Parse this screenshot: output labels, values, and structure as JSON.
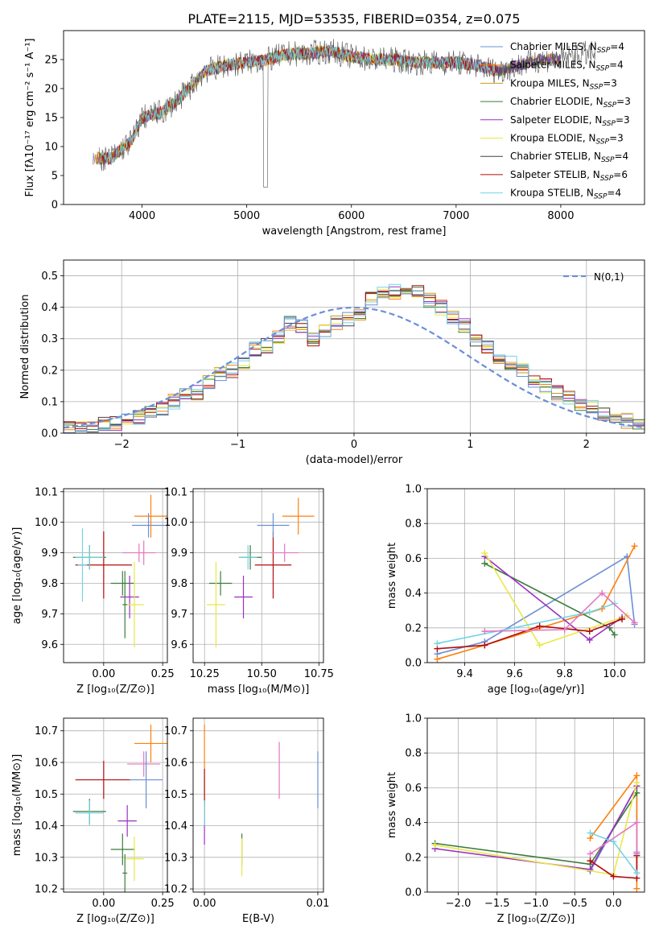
{
  "title": "PLATE=2115, MJD=53535, FIBERID=0354, z=0.075",
  "colors": [
    "#1f77b4",
    "#ff7f0e",
    "#c89b1b",
    "#3b7d3b",
    "#9b30c0",
    "#e8e84a",
    "#444444",
    "#b20d0d",
    "#74d4e4",
    "#6b8fd6",
    "#e377c2"
  ],
  "chart_data": [
    {
      "id": "spectrum",
      "type": "line",
      "xlabel": "wavelength [Angstrom, rest frame]",
      "ylabel": "Flux [fλ10⁻¹⁷ erg cm⁻² s⁻¹ A⁻¹]",
      "xlim": [
        3250,
        8800
      ],
      "ylim": [
        0,
        30
      ],
      "xticks": [
        4000,
        5000,
        6000,
        7000,
        8000
      ],
      "yticks": [
        0,
        5,
        10,
        15,
        20,
        25
      ],
      "grid": false,
      "legend_position": "top-right",
      "series": [
        {
          "name": "Chabrier MILES, N_SSP=4",
          "color": "#6b8fd6"
        },
        {
          "name": "Salpeter MILES, N_SSP=4",
          "color": "#ff7f0e"
        },
        {
          "name": "Kroupa MILES, N_SSP=3",
          "color": "#c89b1b"
        },
        {
          "name": "Chabrier ELODIE, N_SSP=3",
          "color": "#3b7d3b"
        },
        {
          "name": "Salpeter ELODIE, N_SSP=3",
          "color": "#9b30c0"
        },
        {
          "name": "Kroupa ELODIE, N_SSP=3",
          "color": "#e8e84a"
        },
        {
          "name": "Chabrier STELIB, N_SSP=4",
          "color": "#444444"
        },
        {
          "name": "Salpeter STELIB, N_SSP=6",
          "color": "#b20d0d"
        },
        {
          "name": "Kroupa STELIB, N_SSP=4",
          "color": "#74d4e4"
        }
      ],
      "data_x_approx": [
        3550,
        3700,
        3900,
        4000,
        4200,
        4400,
        4600,
        4800,
        5000,
        5200,
        5400,
        5600,
        5800,
        6000,
        6200,
        6400,
        6600,
        6800,
        7000,
        7200,
        7400,
        7600,
        7800,
        8000,
        8200
      ],
      "data_y_approx": [
        8,
        8,
        11,
        15,
        16,
        19,
        23,
        24,
        24.5,
        25,
        26,
        26,
        26.5,
        25.5,
        25,
        25,
        24.5,
        24.5,
        24.5,
        24,
        23,
        24,
        25,
        25,
        26
      ]
    },
    {
      "id": "residuals",
      "type": "histogram",
      "xlabel": "(data-model)/error",
      "ylabel": "Normed distribution",
      "xlim": [
        -2.5,
        2.5
      ],
      "ylim": [
        0,
        0.55
      ],
      "xticks": [
        -2,
        -1,
        0,
        1,
        2
      ],
      "yticks": [
        0.0,
        0.1,
        0.2,
        0.3,
        0.4,
        0.5
      ],
      "grid": true,
      "legend": "N(0,1)",
      "legend_position": "top-right",
      "bin_width": 0.1,
      "bin_start": -2.5,
      "values": [
        0.02,
        0.02,
        0.02,
        0.03,
        0.03,
        0.04,
        0.05,
        0.06,
        0.08,
        0.1,
        0.12,
        0.13,
        0.16,
        0.19,
        0.2,
        0.23,
        0.27,
        0.28,
        0.31,
        0.35,
        0.34,
        0.3,
        0.33,
        0.35,
        0.36,
        0.38,
        0.43,
        0.44,
        0.45,
        0.44,
        0.45,
        0.42,
        0.4,
        0.37,
        0.34,
        0.3,
        0.27,
        0.24,
        0.22,
        0.2,
        0.17,
        0.15,
        0.13,
        0.11,
        0.09,
        0.08,
        0.06,
        0.05,
        0.04,
        0.03
      ]
    },
    {
      "id": "age-vs-Z",
      "type": "errorbar",
      "xlabel": "Z [log₁₀(Z/Z⊙)]",
      "ylabel": "age  [log₁₀(age/yr)]",
      "xlim": [
        -0.17,
        0.27
      ],
      "ylim": [
        9.54,
        10.11
      ],
      "xticks": [
        0.0,
        0.25
      ],
      "yticks": [
        9.6,
        9.7,
        9.8,
        9.9,
        10.0,
        10.1
      ],
      "points": [
        {
          "x": 0.0,
          "y": 9.86,
          "xerr": 0.12,
          "yerr": 0.11,
          "color": "#b20d0d"
        },
        {
          "x": -0.06,
          "y": 9.885,
          "xerr": 0.07,
          "yerr": 0.04,
          "color": "#3b7d3b"
        },
        {
          "x": -0.06,
          "y": 9.885,
          "xerr": 0.06,
          "yerr": 0.04,
          "color": "#74d4e4"
        },
        {
          "x": -0.09,
          "y": 9.86,
          "xerr": 0.02,
          "yerr": 0.12,
          "color": "#74d4e4"
        },
        {
          "x": 0.08,
          "y": 9.8,
          "xerr": 0.05,
          "yerr": 0.04,
          "color": "#3b7d3b"
        },
        {
          "x": 0.11,
          "y": 9.755,
          "xerr": 0.04,
          "yerr": 0.07,
          "color": "#9b30c0"
        },
        {
          "x": 0.13,
          "y": 9.73,
          "xerr": 0.04,
          "yerr": 0.14,
          "color": "#e8e84a"
        },
        {
          "x": 0.09,
          "y": 9.73,
          "xerr": 0.01,
          "yerr": 0.11,
          "color": "#3b7d3b"
        },
        {
          "x": 0.15,
          "y": 9.9,
          "xerr": 0.07,
          "yerr": 0.03,
          "color": "#e377c2"
        },
        {
          "x": 0.19,
          "y": 9.99,
          "xerr": 0.07,
          "yerr": 0.04,
          "color": "#6b8fd6"
        },
        {
          "x": 0.2,
          "y": 10.02,
          "xerr": 0.07,
          "yerr": 0.07,
          "color": "#ff7f0e"
        },
        {
          "x": 0.17,
          "y": 9.9,
          "xerr": 0.01,
          "yerr": 0.04,
          "color": "#e377c2"
        }
      ]
    },
    {
      "id": "age-vs-mass",
      "type": "errorbar",
      "xlabel": "mass [log₁₀(M/M⊙)]",
      "ylabel": "",
      "xlim": [
        10.2,
        10.77
      ],
      "ylim": [
        9.54,
        10.11
      ],
      "xticks": [
        10.25,
        10.5,
        10.75
      ],
      "yticks": [
        9.6,
        9.7,
        9.8,
        9.9,
        10.0,
        10.1
      ],
      "points": [
        {
          "x": 10.55,
          "y": 9.86,
          "xerr": 0.08,
          "yerr": 0.11,
          "color": "#b20d0d"
        },
        {
          "x": 10.45,
          "y": 9.885,
          "xerr": 0.05,
          "yerr": 0.04,
          "color": "#3b7d3b"
        },
        {
          "x": 10.44,
          "y": 9.885,
          "xerr": 0.04,
          "yerr": 0.04,
          "color": "#74d4e4"
        },
        {
          "x": 10.32,
          "y": 9.8,
          "xerr": 0.05,
          "yerr": 0.04,
          "color": "#3b7d3b"
        },
        {
          "x": 10.42,
          "y": 9.755,
          "xerr": 0.04,
          "yerr": 0.07,
          "color": "#9b30c0"
        },
        {
          "x": 10.3,
          "y": 9.73,
          "xerr": 0.04,
          "yerr": 0.14,
          "color": "#e8e84a"
        },
        {
          "x": 10.6,
          "y": 9.9,
          "xerr": 0.06,
          "yerr": 0.03,
          "color": "#e377c2"
        },
        {
          "x": 10.55,
          "y": 9.99,
          "xerr": 0.07,
          "yerr": 0.04,
          "color": "#6b8fd6"
        },
        {
          "x": 10.66,
          "y": 10.02,
          "xerr": 0.07,
          "yerr": 0.06,
          "color": "#ff7f0e"
        }
      ]
    },
    {
      "id": "weight-vs-age",
      "type": "line",
      "xlabel": "age  [log₁₀(age/yr)]",
      "ylabel": "mass weight",
      "xlim": [
        9.25,
        10.12
      ],
      "ylim": [
        0,
        1
      ],
      "xticks": [
        9.4,
        9.6,
        9.8,
        10.0
      ],
      "yticks": [
        0.0,
        0.2,
        0.4,
        0.6,
        0.8,
        1.0
      ],
      "grid": true,
      "series": [
        {
          "color": "#6b8fd6",
          "x": [
            9.29,
            9.48,
            10.05,
            10.08
          ],
          "y": [
            0.05,
            0.12,
            0.61,
            0.22
          ]
        },
        {
          "color": "#ff7f0e",
          "x": [
            9.29,
            9.48,
            9.95,
            10.08
          ],
          "y": [
            0.02,
            0.1,
            0.31,
            0.67
          ]
        },
        {
          "color": "#3b7d3b",
          "x": [
            9.48,
            9.98,
            10.0
          ],
          "y": [
            0.57,
            0.2,
            0.16
          ]
        },
        {
          "color": "#9b30c0",
          "x": [
            9.48,
            9.9,
            10.03
          ],
          "y": [
            0.61,
            0.13,
            0.26
          ]
        },
        {
          "color": "#e8e84a",
          "x": [
            9.48,
            9.7,
            10.05
          ],
          "y": [
            0.63,
            0.1,
            0.27
          ]
        },
        {
          "color": "#b20d0d",
          "x": [
            9.29,
            9.48,
            9.7,
            9.9,
            10.03
          ],
          "y": [
            0.08,
            0.1,
            0.21,
            0.18,
            0.25
          ]
        },
        {
          "color": "#74d4e4",
          "x": [
            9.29,
            9.9,
            10.0
          ],
          "y": [
            0.11,
            0.29,
            0.34
          ]
        },
        {
          "color": "#e377c2",
          "x": [
            9.48,
            9.8,
            9.95,
            10.08
          ],
          "y": [
            0.18,
            0.19,
            0.4,
            0.23
          ]
        }
      ]
    },
    {
      "id": "mass-vs-Z",
      "type": "errorbar",
      "xlabel": "Z [log₁₀(Z/Z⊙)]",
      "ylabel": "mass [log₁₀(M/M⊙)]",
      "xlim": [
        -0.17,
        0.27
      ],
      "ylim": [
        10.19,
        10.74
      ],
      "xticks": [
        0.0,
        0.25
      ],
      "yticks": [
        10.2,
        10.3,
        10.4,
        10.5,
        10.6,
        10.7
      ],
      "points": [
        {
          "x": 0.0,
          "y": 10.545,
          "xerr": 0.12,
          "yerr": 0.06,
          "color": "#b20d0d"
        },
        {
          "x": -0.06,
          "y": 10.445,
          "xerr": 0.07,
          "yerr": 0.04,
          "color": "#3b7d3b"
        },
        {
          "x": -0.06,
          "y": 10.44,
          "xerr": 0.06,
          "yerr": 0.04,
          "color": "#74d4e4"
        },
        {
          "x": 0.08,
          "y": 10.325,
          "xerr": 0.05,
          "yerr": 0.05,
          "color": "#3b7d3b"
        },
        {
          "x": 0.1,
          "y": 10.415,
          "xerr": 0.04,
          "yerr": 0.05,
          "color": "#9b30c0"
        },
        {
          "x": 0.13,
          "y": 10.295,
          "xerr": 0.04,
          "yerr": 0.07,
          "color": "#e8e84a"
        },
        {
          "x": 0.09,
          "y": 10.25,
          "xerr": 0.01,
          "yerr": 0.06,
          "color": "#3b7d3b"
        },
        {
          "x": 0.17,
          "y": 10.595,
          "xerr": 0.07,
          "yerr": 0.04,
          "color": "#e377c2"
        },
        {
          "x": 0.18,
          "y": 10.545,
          "xerr": 0.07,
          "yerr": 0.09,
          "color": "#6b8fd6"
        },
        {
          "x": 0.2,
          "y": 10.66,
          "xerr": 0.07,
          "yerr": 0.06,
          "color": "#ff7f0e"
        }
      ]
    },
    {
      "id": "mass-vs-ebv",
      "type": "errorbar",
      "xlabel": "E(B-V)",
      "ylabel": "",
      "xlim": [
        -0.001,
        0.0105
      ],
      "ylim": [
        10.19,
        10.74
      ],
      "xticks": [
        0.0,
        0.01
      ],
      "xtick_labels": [
        "0.00",
        "0.01"
      ],
      "yticks": [
        10.2,
        10.3,
        10.4,
        10.5,
        10.6,
        10.7
      ],
      "points": [
        {
          "x": 0.0,
          "y": 10.56,
          "xerr": 0,
          "yerr": 0.16,
          "color": "#ff7f0e"
        },
        {
          "x": 0.0,
          "y": 10.52,
          "xerr": 0,
          "yerr": 0.06,
          "color": "#b20d0d"
        },
        {
          "x": 0.0,
          "y": 10.41,
          "xerr": 0,
          "yerr": 0.07,
          "color": "#9b30c0"
        },
        {
          "x": 0.0,
          "y": 10.44,
          "xerr": 0,
          "yerr": 0.04,
          "color": "#74d4e4"
        },
        {
          "x": 0.0033,
          "y": 10.325,
          "xerr": 0,
          "yerr": 0.05,
          "color": "#3b7d3b"
        },
        {
          "x": 0.0033,
          "y": 10.3,
          "xerr": 0,
          "yerr": 0.06,
          "color": "#e8e84a"
        },
        {
          "x": 0.0066,
          "y": 10.575,
          "xerr": 0,
          "yerr": 0.09,
          "color": "#e377c2"
        },
        {
          "x": 0.01,
          "y": 10.545,
          "xerr": 0,
          "yerr": 0.09,
          "color": "#6b8fd6"
        }
      ]
    },
    {
      "id": "weight-vs-Z",
      "type": "line",
      "xlabel": "Z [log₁₀(Z/Z⊙)]",
      "ylabel": "mass weight",
      "xlim": [
        -2.4,
        0.4
      ],
      "ylim": [
        0,
        1
      ],
      "xticks": [
        -2.0,
        -1.5,
        -1.0,
        -0.5,
        0.0
      ],
      "yticks": [
        0.0,
        0.2,
        0.4,
        0.6,
        0.8,
        1.0
      ],
      "grid": true,
      "series": [
        {
          "color": "#6b8fd6",
          "x": [
            -0.3,
            0.3,
            0.3
          ],
          "y": [
            0.12,
            0.61,
            0.22
          ]
        },
        {
          "color": "#ff7f0e",
          "x": [
            -0.3,
            0.3,
            0.3
          ],
          "y": [
            0.31,
            0.67,
            0.02
          ]
        },
        {
          "color": "#3b7d3b",
          "x": [
            -2.3,
            -0.3,
            0.3
          ],
          "y": [
            0.28,
            0.16,
            0.57
          ]
        },
        {
          "color": "#9b30c0",
          "x": [
            -2.3,
            -0.3,
            0.3
          ],
          "y": [
            0.25,
            0.13,
            0.61
          ]
        },
        {
          "color": "#e8e84a",
          "x": [
            -2.3,
            0.0,
            0.3
          ],
          "y": [
            0.27,
            0.1,
            0.63
          ]
        },
        {
          "color": "#b20d0d",
          "x": [
            -0.3,
            0.0,
            0.3,
            0.3
          ],
          "y": [
            0.18,
            0.09,
            0.08,
            0.21
          ]
        },
        {
          "color": "#74d4e4",
          "x": [
            -0.3,
            0.0,
            0.3
          ],
          "y": [
            0.34,
            0.29,
            0.11
          ]
        },
        {
          "color": "#e377c2",
          "x": [
            -0.3,
            0.3,
            0.3
          ],
          "y": [
            0.22,
            0.4,
            0.23
          ]
        }
      ]
    }
  ]
}
